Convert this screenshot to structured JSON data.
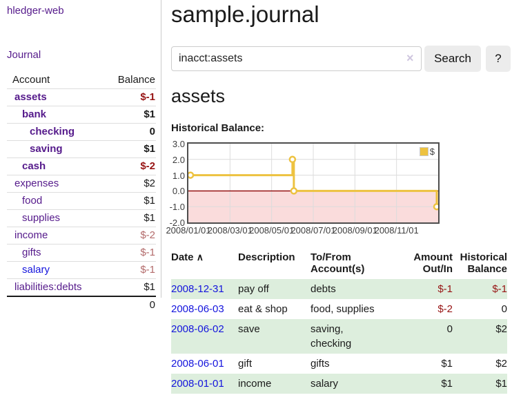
{
  "app": {
    "title": "hledger-web",
    "nav_journal": "Journal"
  },
  "sidebar": {
    "header": {
      "account": "Account",
      "balance": "Balance"
    },
    "accounts": [
      {
        "name": "assets",
        "balance": "$-1",
        "level": 1,
        "bold": true,
        "bal_class": "neg-strong",
        "link_color": "purple"
      },
      {
        "name": "bank",
        "balance": "$1",
        "level": 2,
        "bold": true,
        "bal_class": "pos",
        "link_color": "purple"
      },
      {
        "name": "checking",
        "balance": "0",
        "level": 3,
        "bold": true,
        "bal_class": "pos",
        "link_color": "purple"
      },
      {
        "name": "saving",
        "balance": "$1",
        "level": 3,
        "bold": true,
        "bal_class": "pos",
        "link_color": "purple"
      },
      {
        "name": "cash",
        "balance": "$-2",
        "level": 2,
        "bold": true,
        "bal_class": "neg-strong",
        "link_color": "purple"
      },
      {
        "name": "expenses",
        "balance": "$2",
        "level": 1,
        "bold": false,
        "bal_class": "pos",
        "link_color": "purple"
      },
      {
        "name": "food",
        "balance": "$1",
        "level": 2,
        "bold": false,
        "bal_class": "pos",
        "link_color": "purple"
      },
      {
        "name": "supplies",
        "balance": "$1",
        "level": 2,
        "bold": false,
        "bal_class": "pos",
        "link_color": "purple"
      },
      {
        "name": "income",
        "balance": "$-2",
        "level": 1,
        "bold": false,
        "bal_class": "neg-soft",
        "link_color": "purple"
      },
      {
        "name": "gifts",
        "balance": "$-1",
        "level": 2,
        "bold": false,
        "bal_class": "neg-soft",
        "link_color": "purple"
      },
      {
        "name": "salary",
        "balance": "$-1",
        "level": 2,
        "bold": false,
        "bal_class": "neg-soft",
        "link_color": "blue"
      },
      {
        "name": "liabilities:debts",
        "balance": "$1",
        "level": 1,
        "bold": false,
        "bal_class": "pos",
        "link_color": "purple"
      }
    ],
    "total": "0"
  },
  "main": {
    "title": "sample.journal",
    "search": {
      "value": "inacct:assets",
      "clear_icon": "×",
      "button": "Search",
      "help": "?"
    },
    "account_heading": "assets",
    "chart_label": "Historical Balance:"
  },
  "chart_data": {
    "type": "line",
    "title": "Historical Balance",
    "legend": "$",
    "legend_position": "top-right",
    "grid": true,
    "line_color": "#edc240",
    "zero_line_color": "#8b0000",
    "negative_fill": "#fadcdc",
    "ylim": [
      -2,
      3
    ],
    "yticks": [
      "3.0",
      "2.0",
      "1.0",
      "0.0",
      "-1.0",
      "-2.0"
    ],
    "xticks": [
      "2008/01/01",
      "2008/03/01",
      "2008/05/01",
      "2008/07/01",
      "2008/09/01",
      "2008/11/01"
    ],
    "series": [
      {
        "name": "$",
        "steps": true,
        "points": [
          [
            "2008/01/01",
            1
          ],
          [
            "2008/06/01",
            2
          ],
          [
            "2008/06/03",
            0
          ],
          [
            "2008/12/31",
            -1
          ]
        ]
      }
    ]
  },
  "table": {
    "sort_icon": "∧",
    "headers": [
      "Date",
      "Description",
      "To/From Account(s)",
      "Amount Out/In",
      "Historical Balance"
    ],
    "rows": [
      {
        "date": "2008-12-31",
        "description": "pay off",
        "accounts": "debts",
        "amount": "$-1",
        "balance": "$-1"
      },
      {
        "date": "2008-06-03",
        "description": "eat & shop",
        "accounts": "food, supplies",
        "amount": "$-2",
        "balance": "0"
      },
      {
        "date": "2008-06-02",
        "description": "save",
        "accounts": "saving, checking",
        "amount": "0",
        "balance": "$2"
      },
      {
        "date": "2008-06-01",
        "description": "gift",
        "accounts": "gifts",
        "amount": "$1",
        "balance": "$2"
      },
      {
        "date": "2008-01-01",
        "description": "income",
        "accounts": "salary",
        "amount": "$1",
        "balance": "$1"
      }
    ]
  }
}
